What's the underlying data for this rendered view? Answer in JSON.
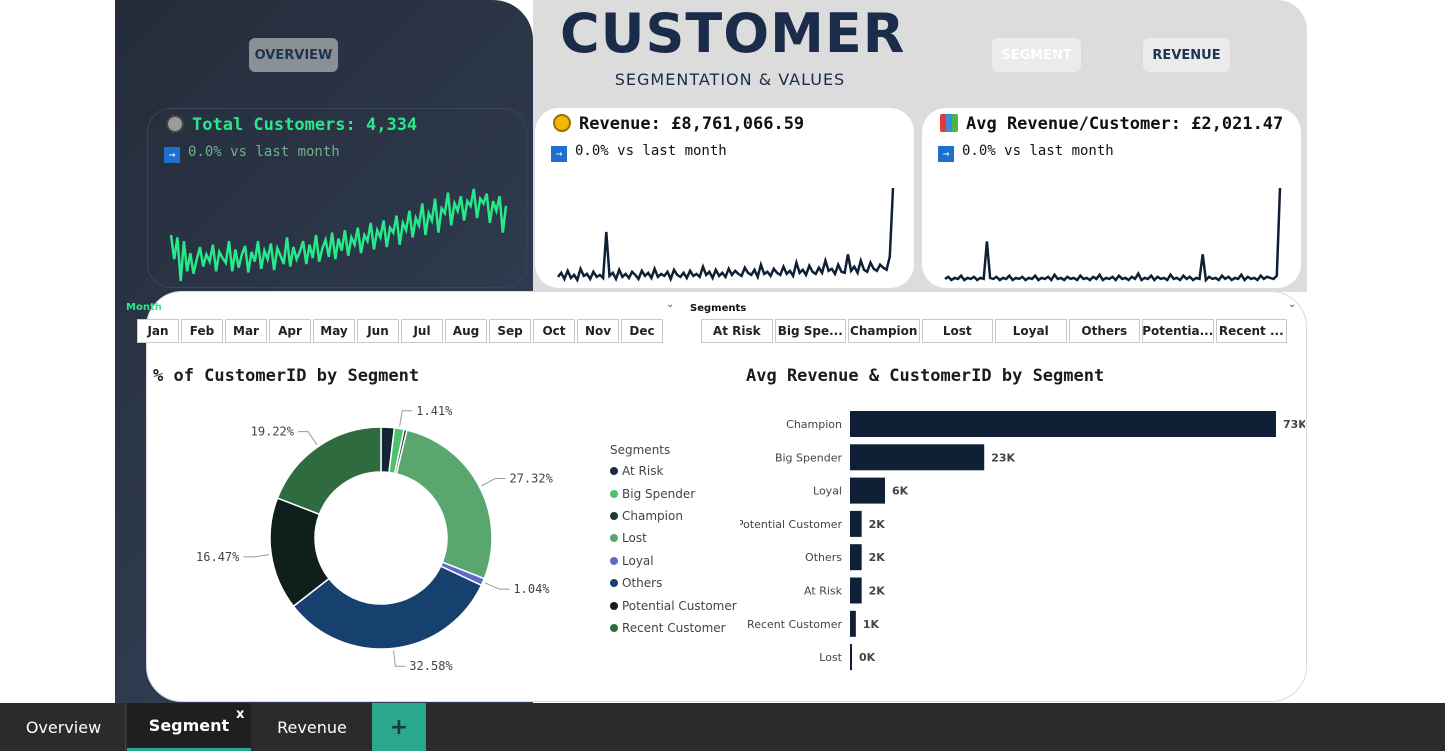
{
  "header": {
    "title": "CUSTOMER",
    "subtitle": "SEGMENTATION & VALUES",
    "nav": {
      "overview": "OVERVIEW",
      "segment": "SEGMENT",
      "revenue": "REVENUE"
    }
  },
  "kpis": {
    "customers": {
      "label": "Total Customers: 4,334",
      "change": "0.0% vs last month",
      "arrow": "→",
      "icon": "person-icon",
      "color": "#27e98a"
    },
    "revenue": {
      "label": "Revenue: £8,761,066.59",
      "change": "0.0% vs last month",
      "arrow": "→",
      "icon": "money-bag-icon",
      "color": "#111111"
    },
    "avg": {
      "label": "Avg Revenue/Customer: £2,021.47",
      "change": "0.0% vs last month",
      "arrow": "→",
      "icon": "bar-chart-icon",
      "color": "#111111"
    }
  },
  "slicers": {
    "month": {
      "label": "Month",
      "options": [
        "Jan",
        "Feb",
        "Mar",
        "Apr",
        "May",
        "Jun",
        "Jul",
        "Aug",
        "Sep",
        "Oct",
        "Nov",
        "Dec"
      ]
    },
    "segments": {
      "label": "Segments",
      "options": [
        "At Risk",
        "Big Spe...",
        "Champion",
        "Lost",
        "Loyal",
        "Others",
        "Potentia...",
        "Recent ..."
      ]
    }
  },
  "donut_title": "% of CustomerID by Segment",
  "bar_title": "Avg Revenue & CustomerID by Segment",
  "legend": {
    "title": "Segments",
    "items": [
      {
        "name": "At Risk",
        "color": "#1b2a3c"
      },
      {
        "name": "Big Spender",
        "color": "#4dc26a"
      },
      {
        "name": "Champion",
        "color": "#1f3a34"
      },
      {
        "name": "Lost",
        "color": "#5aa66f"
      },
      {
        "name": "Loyal",
        "color": "#5b6cc8"
      },
      {
        "name": "Others",
        "color": "#16406e"
      },
      {
        "name": "Potential Customer",
        "color": "#0f1f1c"
      },
      {
        "name": "Recent Customer",
        "color": "#2e6b3e"
      }
    ]
  },
  "chart_data": [
    {
      "type": "pie",
      "title": "% of CustomerID by Segment",
      "slices": [
        {
          "name": "At Risk",
          "value": 1.94,
          "label": "",
          "color": "#152538"
        },
        {
          "name": "Big Spender",
          "value": 1.41,
          "label": "1.41%",
          "color": "#4dc26a"
        },
        {
          "name": "Champion",
          "value": 0.43,
          "label": "",
          "color": "#1f3a34"
        },
        {
          "name": "Lost",
          "value": 27.32,
          "label": "27.32%",
          "color": "#5aa66f"
        },
        {
          "name": "Loyal",
          "value": 1.04,
          "label": "1.04%",
          "color": "#5b6cc8"
        },
        {
          "name": "Others",
          "value": 32.58,
          "label": "32.58%",
          "color": "#16406e"
        },
        {
          "name": "Potential Customer",
          "value": 16.47,
          "label": "16.47%",
          "color": "#0f1f1c"
        },
        {
          "name": "Recent Customer",
          "value": 19.22,
          "label": "19.22%",
          "color": "#2e6b3e"
        }
      ]
    },
    {
      "type": "bar",
      "title": "Avg Revenue & CustomerID by Segment",
      "orientation": "horizontal",
      "categories": [
        "Champion",
        "Big Spender",
        "Loyal",
        "Potential Customer",
        "Others",
        "At Risk",
        "Recent Customer",
        "Lost"
      ],
      "values": [
        73,
        23,
        6,
        2,
        2,
        2,
        1,
        0
      ],
      "labels": [
        "73K",
        "23K",
        "6K",
        "2K",
        "2K",
        "2K",
        "1K",
        "0K"
      ],
      "xlim": [
        0,
        73
      ],
      "color": "#0f1f35"
    },
    {
      "type": "line",
      "title": "",
      "series": [
        {
          "values": [
            60,
            40,
            58,
            22,
            55,
            30,
            45,
            28,
            40,
            50,
            34,
            44,
            38,
            52,
            30,
            46,
            41,
            37,
            55,
            30,
            48,
            33,
            44,
            51,
            29,
            46,
            38,
            55,
            32,
            47,
            40,
            53,
            31,
            49,
            43,
            36,
            58,
            34,
            50,
            40,
            46,
            55,
            36,
            52,
            41,
            60,
            38,
            49,
            56,
            42,
            62,
            40,
            57,
            47,
            64,
            43,
            58,
            52,
            66,
            45,
            60,
            55,
            70,
            48,
            64,
            58,
            72,
            50,
            66,
            62,
            76,
            52,
            70,
            64,
            80,
            58,
            74,
            68,
            86,
            60,
            78,
            72,
            90,
            62,
            82,
            78,
            95,
            68,
            86,
            80,
            92,
            72,
            88,
            84,
            98,
            74,
            90,
            86,
            94,
            70,
            88,
            80,
            92,
            62,
            84
          ]
        }
      ]
    },
    {
      "type": "line",
      "title": "",
      "series": [
        {
          "values": [
            8,
            12,
            6,
            14,
            7,
            10,
            5,
            16,
            9,
            11,
            6,
            13,
            8,
            10,
            7,
            52,
            9,
            12,
            6,
            15,
            8,
            11,
            7,
            13,
            10,
            6,
            14,
            9,
            12,
            7,
            16,
            8,
            11,
            9,
            13,
            6,
            15,
            10,
            8,
            12,
            7,
            14,
            9,
            11,
            8,
            18,
            10,
            13,
            7,
            15,
            9,
            12,
            8,
            16,
            10,
            14,
            11,
            9,
            17,
            12,
            10,
            15,
            8,
            20,
            11,
            13,
            9,
            16,
            12,
            10,
            18,
            11,
            14,
            9,
            22,
            12,
            15,
            10,
            19,
            13,
            11,
            17,
            12,
            24,
            14,
            16,
            11,
            20,
            13,
            12,
            30,
            14,
            18,
            12,
            24,
            15,
            13,
            22,
            16,
            14,
            20,
            17,
            15,
            28,
            95
          ]
        }
      ]
    },
    {
      "type": "line",
      "title": "",
      "series": [
        {
          "values": [
            5,
            7,
            4,
            6,
            5,
            8,
            4,
            6,
            5,
            7,
            4,
            6,
            5,
            40,
            6,
            5,
            7,
            4,
            6,
            5,
            8,
            4,
            6,
            5,
            7,
            4,
            6,
            5,
            8,
            4,
            6,
            5,
            7,
            4,
            9,
            5,
            6,
            4,
            7,
            5,
            6,
            4,
            8,
            5,
            6,
            4,
            7,
            5,
            9,
            4,
            6,
            5,
            7,
            4,
            8,
            5,
            6,
            4,
            7,
            5,
            10,
            4,
            6,
            5,
            8,
            4,
            7,
            5,
            6,
            4,
            9,
            5,
            6,
            4,
            8,
            5,
            7,
            4,
            6,
            5,
            28,
            4,
            7,
            5,
            6,
            4,
            8,
            5,
            7,
            4,
            6,
            5,
            9,
            4,
            7,
            5,
            6,
            4,
            8,
            5,
            7,
            6,
            5,
            8,
            90
          ]
        }
      ]
    }
  ],
  "tabs": {
    "overview": "Overview",
    "segment": "Segment",
    "revenue": "Revenue",
    "add": "+",
    "close": "x"
  }
}
